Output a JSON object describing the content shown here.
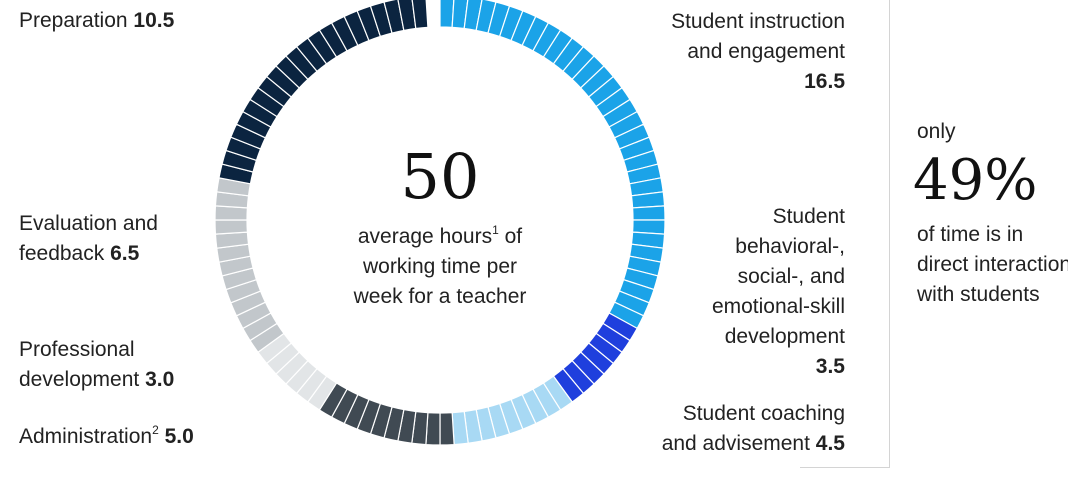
{
  "chart_data": {
    "type": "donut",
    "total": 50,
    "segments": [
      {
        "name": "Student instruction and engagement",
        "value": 16.5,
        "color": "#1ba3e8"
      },
      {
        "name": "Student behavioral-, social-, and emotional-skill development",
        "value": 3.5,
        "color": "#1f3fdd"
      },
      {
        "name": "Student coaching and advisement",
        "value": 4.5,
        "color": "#a8d9f4"
      },
      {
        "name": "Administration",
        "value": 5.0,
        "color": "#404a53"
      },
      {
        "name": "Professional development",
        "value": 3.0,
        "color": "#e2e5e7"
      },
      {
        "name": "Evaluation and feedback",
        "value": 6.5,
        "color": "#c2c7cb"
      },
      {
        "name": "Preparation",
        "value": 10.5,
        "color": "#0b2440"
      }
    ]
  },
  "center": {
    "number": "50",
    "line1": "average hours",
    "line1_sup": "1",
    "line1_tail": " of",
    "line2": "working time per",
    "line3": "week for a teacher"
  },
  "labels": {
    "instruction": {
      "line1": "Student instruction",
      "line2": "and engagement",
      "value": "16.5"
    },
    "behavioral": {
      "line1": "Student",
      "line2": "behavioral-,",
      "line3": "social-, and",
      "line4": "emotional-skill",
      "line5": "development",
      "value": "3.5"
    },
    "coaching": {
      "line1": "Student coaching",
      "line2": "and advisement ",
      "value": "4.5"
    },
    "administration": {
      "text": "Administration",
      "sup": "2",
      "value": " 5.0"
    },
    "professional": {
      "line1": "Professional",
      "line2": "development ",
      "value": "3.0"
    },
    "evaluation": {
      "line1": "Evaluation and",
      "line2": "feedback ",
      "value": "6.5"
    },
    "preparation": {
      "text": "Preparation ",
      "value": "10.5"
    }
  },
  "callout": {
    "only": "only",
    "percent": "49%",
    "line1": "of time is in",
    "line2": "direct interaction",
    "line3": "with students"
  }
}
